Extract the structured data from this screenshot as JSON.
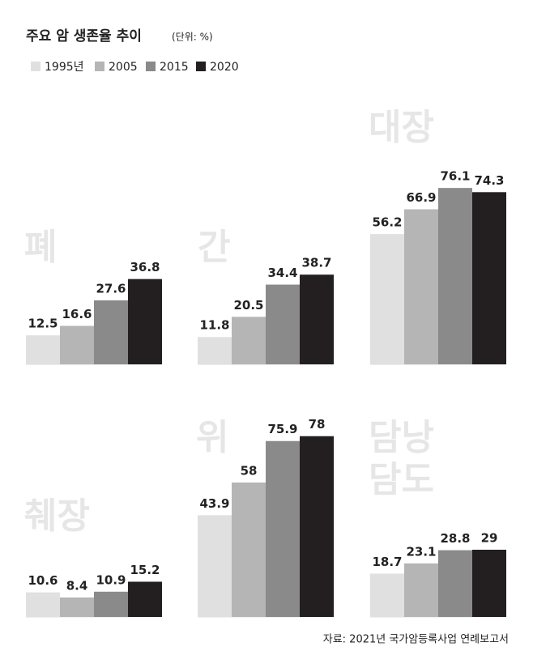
{
  "header": {
    "title": "주요 암 생존율 추이",
    "unit": "(단위: %)"
  },
  "legend": {
    "items": [
      {
        "name": "1995년",
        "color": "#e0e0e0"
      },
      {
        "name": "2005",
        "color": "#b5b5b5"
      },
      {
        "name": "2015",
        "color": "#8a8a8a"
      },
      {
        "name": "2020",
        "color": "#231f20"
      }
    ]
  },
  "chart_data": [
    {
      "type": "bar",
      "title": "폐",
      "values": [
        12.5,
        16.6,
        27.6,
        36.8
      ],
      "ylim": [
        0,
        80
      ]
    },
    {
      "type": "bar",
      "title": "간",
      "values": [
        11.8,
        20.5,
        34.4,
        38.7
      ],
      "ylim": [
        0,
        80
      ]
    },
    {
      "type": "bar",
      "title": "대장",
      "values": [
        56.2,
        66.9,
        76.1,
        74.3
      ],
      "ylim": [
        0,
        80
      ]
    },
    {
      "type": "bar",
      "title": "췌장",
      "values": [
        10.6,
        8.4,
        10.9,
        15.2
      ],
      "ylim": [
        0,
        80
      ]
    },
    {
      "type": "bar",
      "title": "위",
      "values": [
        43.9,
        58,
        75.9,
        78
      ],
      "ylim": [
        0,
        80
      ]
    },
    {
      "type": "bar",
      "title": "담낭 담도",
      "values": [
        18.7,
        23.1,
        28.8,
        29
      ],
      "ylim": [
        0,
        80
      ]
    }
  ],
  "source": "자료: 2021년 국가암등록사업 연례보고서"
}
